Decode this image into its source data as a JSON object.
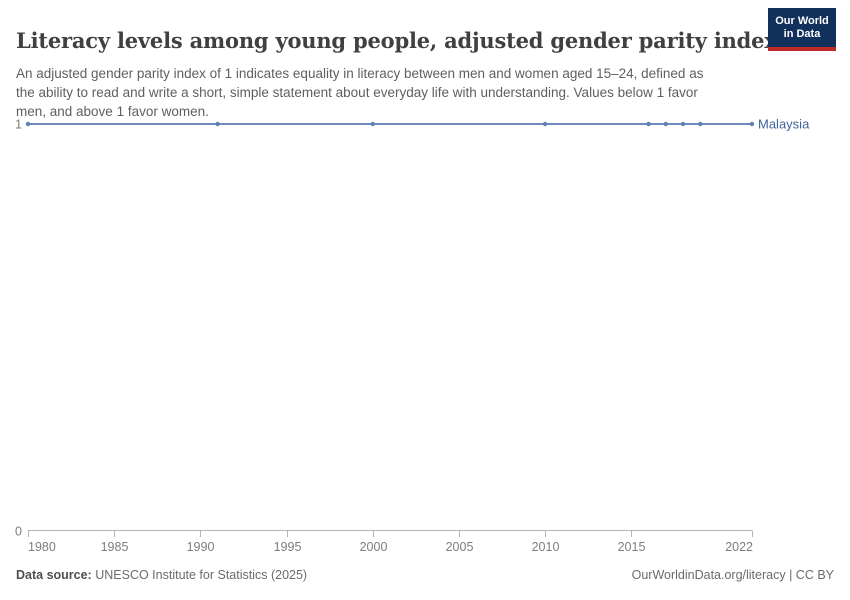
{
  "header": {
    "title": "Literacy levels among young people, adjusted gender parity index",
    "subtitle": "An adjusted gender parity index of 1 indicates equality in literacy between men and women aged 15–24, defined as the ability to read and write a short, simple statement about everyday life with understanding. Values below 1 favor men, and above 1 favor women.",
    "logo": {
      "line1": "Our World",
      "line2": "in Data",
      "bg_color": "#12305c",
      "bar_color": "#bd2b26"
    }
  },
  "chart_data": {
    "type": "line",
    "title": "Literacy levels among young people, adjusted gender parity index",
    "series": [
      {
        "name": "Malaysia",
        "color": "#6e8bba",
        "point_color": "#5e80b4",
        "label_color": "#41639c",
        "x": [
          1980,
          1991,
          2000,
          2010,
          2016,
          2017,
          2018,
          2019,
          2022
        ],
        "values": [
          1,
          1,
          1,
          1,
          1,
          1,
          1,
          1,
          1
        ]
      }
    ],
    "xlim": [
      1980,
      2022
    ],
    "ylim": [
      0,
      1
    ],
    "x_ticks": [
      "1980",
      "1985",
      "1990",
      "1995",
      "2000",
      "2005",
      "2010",
      "2015",
      "2022"
    ],
    "x_tick_years": [
      1980,
      1985,
      1990,
      1995,
      2000,
      2005,
      2010,
      2015,
      2022
    ],
    "y_ticks": [
      "0",
      "1"
    ],
    "y_tick_values": [
      0,
      1
    ],
    "grid": false,
    "legend_position": "end-of-line",
    "axis_color": "#b3b3b3",
    "tick_label_color": "#7d7d7d"
  },
  "footer": {
    "source_label": "Data source:",
    "source_value": "UNESCO Institute for Statistics (2025)",
    "right_text": "OurWorldinData.org/literacy | CC BY"
  }
}
